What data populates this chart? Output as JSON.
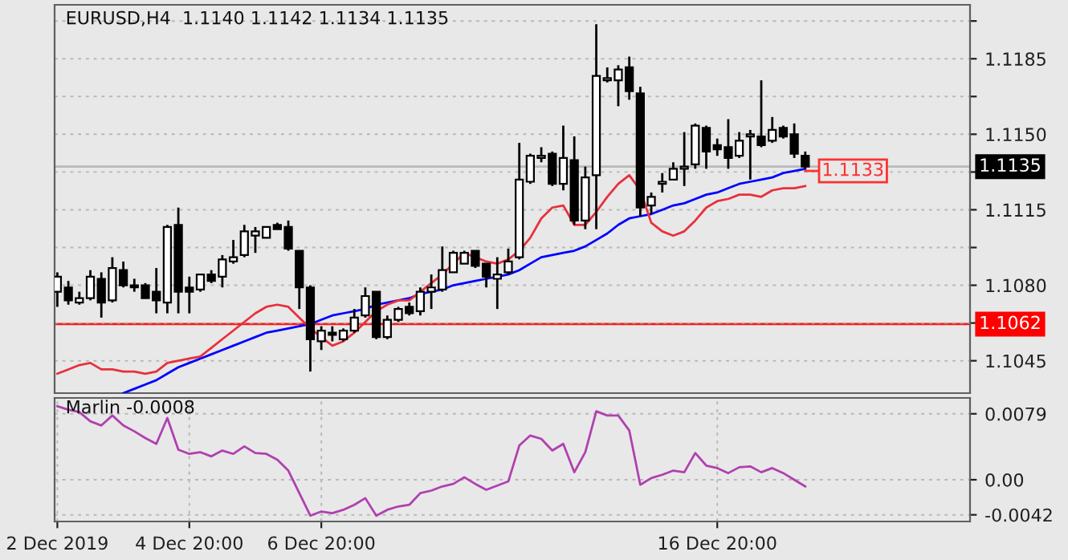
{
  "chart_data": [
    {
      "type": "candlestick",
      "title": "EURUSD,H4  1.1140 1.1142 1.1134 1.1135",
      "categories": [
        null,
        null,
        null,
        null,
        null,
        null,
        null,
        null,
        null,
        null,
        null,
        null,
        null,
        null,
        null,
        null,
        null,
        null,
        null,
        null,
        null,
        null,
        null,
        null,
        null,
        null,
        null,
        null,
        null,
        null,
        null,
        null,
        null,
        null,
        null,
        null,
        null,
        null,
        null,
        null,
        null,
        null,
        null,
        null,
        null,
        null,
        null,
        null,
        null,
        null,
        null,
        null,
        null,
        null,
        null,
        null,
        null,
        null,
        null,
        null,
        null,
        null,
        null,
        null,
        null,
        null,
        null,
        null,
        null
      ],
      "ohlc": [
        [
          1.1077,
          1.1086,
          1.107,
          1.1084
        ],
        [
          1.1079,
          1.1082,
          1.1071,
          1.1073
        ],
        [
          1.1072,
          1.1077,
          1.1071,
          1.1074
        ],
        [
          1.1074,
          1.1087,
          1.1073,
          1.1084
        ],
        [
          1.1083,
          1.1086,
          1.1065,
          1.1072
        ],
        [
          1.1073,
          1.1093,
          1.1072,
          1.1088
        ],
        [
          1.1087,
          1.1091,
          1.1079,
          1.108
        ],
        [
          1.108,
          1.1083,
          1.1077,
          1.1079
        ],
        [
          1.108,
          1.1081,
          1.1074,
          1.1074
        ],
        [
          1.1077,
          1.1088,
          1.1067,
          1.1073
        ],
        [
          1.1072,
          1.1108,
          1.1067,
          1.1107
        ],
        [
          1.1108,
          1.1116,
          1.1067,
          1.1077
        ],
        [
          1.1079,
          1.1084,
          1.1067,
          1.1077
        ],
        [
          1.1078,
          1.1085,
          1.1077,
          1.1085
        ],
        [
          1.1085,
          1.1087,
          1.1081,
          1.1082
        ],
        [
          1.1084,
          1.1094,
          1.1079,
          1.1092
        ],
        [
          1.1091,
          1.1101,
          1.109,
          1.1093
        ],
        [
          1.1094,
          1.1108,
          1.1093,
          1.1105
        ],
        [
          1.1103,
          1.1107,
          1.1095,
          1.1105
        ],
        [
          1.1102,
          1.1107,
          1.1102,
          1.1107
        ],
        [
          1.1108,
          1.1109,
          1.1106,
          1.1106
        ],
        [
          1.1107,
          1.111,
          1.1096,
          1.1097
        ],
        [
          1.1096,
          1.1096,
          1.1069,
          1.1079
        ],
        [
          1.1079,
          1.108,
          1.104,
          1.1055
        ],
        [
          1.1054,
          1.1061,
          1.105,
          1.1059
        ],
        [
          1.1058,
          1.1061,
          1.1054,
          1.1057
        ],
        [
          1.1055,
          1.106,
          1.1054,
          1.1059
        ],
        [
          1.1059,
          1.1069,
          1.1058,
          1.1065
        ],
        [
          1.1066,
          1.1079,
          1.1065,
          1.1075
        ],
        [
          1.1077,
          1.1077,
          1.1055,
          1.1056
        ],
        [
          1.1056,
          1.1066,
          1.1055,
          1.1064
        ],
        [
          1.1064,
          1.107,
          1.1063,
          1.1069
        ],
        [
          1.107,
          1.1072,
          1.1066,
          1.1067
        ],
        [
          1.1068,
          1.1079,
          1.1066,
          1.1077
        ],
        [
          1.1077,
          1.1085,
          1.1069,
          1.1079
        ],
        [
          1.1078,
          1.1098,
          1.1077,
          1.1087
        ],
        [
          1.1086,
          1.1096,
          1.1086,
          1.1095
        ],
        [
          1.109,
          1.1096,
          1.109,
          1.1095
        ],
        [
          1.1096,
          1.1096,
          1.1088,
          1.1089
        ],
        [
          1.109,
          1.109,
          1.1079,
          1.1084
        ],
        [
          1.1083,
          1.1093,
          1.1069,
          1.1085
        ],
        [
          1.1086,
          1.1097,
          1.1085,
          1.1091
        ],
        [
          1.1093,
          1.1146,
          1.1092,
          1.1129
        ],
        [
          1.1128,
          1.1141,
          1.1127,
          1.114
        ],
        [
          1.1139,
          1.1144,
          1.1137,
          1.114
        ],
        [
          1.1141,
          1.1142,
          1.1126,
          1.1127
        ],
        [
          1.1127,
          1.1154,
          1.1124,
          1.1139
        ],
        [
          1.1138,
          1.1149,
          1.1108,
          1.111
        ],
        [
          1.111,
          1.1135,
          1.1106,
          1.113
        ],
        [
          1.1131,
          1.1201,
          1.1106,
          1.1177
        ],
        [
          1.1175,
          1.1181,
          1.1174,
          1.1176
        ],
        [
          1.1175,
          1.1182,
          1.1163,
          1.118
        ],
        [
          1.1181,
          1.1186,
          1.1166,
          1.117
        ],
        [
          1.1169,
          1.1172,
          1.1112,
          1.1116
        ],
        [
          1.1117,
          1.1123,
          1.1113,
          1.1121
        ],
        [
          1.1127,
          1.1132,
          1.1123,
          1.1128
        ],
        [
          1.1129,
          1.1137,
          1.1129,
          1.1134
        ],
        [
          1.1134,
          1.1151,
          1.1126,
          1.1135
        ],
        [
          1.1136,
          1.1155,
          1.1134,
          1.1154
        ],
        [
          1.1153,
          1.1154,
          1.1134,
          1.1142
        ],
        [
          1.1145,
          1.1148,
          1.114,
          1.1143
        ],
        [
          1.1144,
          1.1157,
          1.1134,
          1.1139
        ],
        [
          1.114,
          1.1151,
          1.1139,
          1.1147
        ],
        [
          1.1149,
          1.1152,
          1.1129,
          1.115
        ],
        [
          1.1149,
          1.1175,
          1.1144,
          1.1145
        ],
        [
          1.1147,
          1.1158,
          1.1146,
          1.1152
        ],
        [
          1.1153,
          1.1154,
          1.1148,
          1.1149
        ],
        [
          1.115,
          1.1155,
          1.1139,
          1.1141
        ],
        [
          1.114,
          1.1142,
          1.1134,
          1.1135
        ]
      ],
      "series": [
        {
          "type": "line",
          "color": "#0000ff",
          "values": [
            null,
            null,
            null,
            null,
            null,
            null,
            1.103,
            1.1032,
            1.1034,
            1.1036,
            1.1039,
            1.1042,
            1.1044,
            1.1046,
            1.1048,
            1.105,
            1.1052,
            1.1054,
            1.1056,
            1.1058,
            1.1059,
            1.106,
            1.1061,
            1.1062,
            1.1064,
            1.1066,
            1.1067,
            1.1068,
            1.1069,
            1.1071,
            1.1072,
            1.1073,
            1.1074,
            1.1076,
            1.1077,
            1.1078,
            1.108,
            1.1081,
            1.1082,
            1.1083,
            1.1084,
            1.1085,
            1.1087,
            1.109,
            1.1093,
            1.1094,
            1.1095,
            1.1096,
            1.1098,
            1.1101,
            1.1104,
            1.1108,
            1.1111,
            1.1112,
            1.1113,
            1.1115,
            1.1117,
            1.1118,
            1.112,
            1.1122,
            1.1123,
            1.1125,
            1.1127,
            1.1128,
            1.1129,
            1.113,
            1.1132,
            1.1133,
            1.1134
          ]
        },
        {
          "type": "line",
          "color": "#e8303c",
          "values": [
            1.1039,
            1.1041,
            1.1043,
            1.1044,
            1.1041,
            1.1041,
            1.104,
            1.104,
            1.1039,
            1.104,
            1.1044,
            1.1045,
            1.1046,
            1.1047,
            1.1051,
            1.1055,
            1.1059,
            1.1063,
            1.1067,
            1.107,
            1.1071,
            1.107,
            1.1065,
            1.106,
            1.1056,
            1.1052,
            1.1054,
            1.1058,
            1.1063,
            1.1068,
            1.1071,
            1.1073,
            1.1073,
            1.1077,
            1.1081,
            1.1085,
            1.109,
            1.1095,
            1.1093,
            1.1091,
            1.109,
            1.1092,
            1.1096,
            1.1102,
            1.1111,
            1.1116,
            1.1117,
            1.1108,
            1.1108,
            1.1114,
            1.1121,
            1.1127,
            1.1131,
            1.1124,
            1.1109,
            1.1105,
            1.1103,
            1.1105,
            1.111,
            1.1116,
            1.1119,
            1.112,
            1.1122,
            1.1122,
            1.1121,
            1.1124,
            1.1125,
            1.1125,
            1.1126
          ]
        }
      ],
      "ref_lines": [
        {
          "axis": "y",
          "value": 1.1062,
          "label": "1.1062",
          "color": "#ff0000"
        },
        {
          "axis": "y",
          "value": 1.1135,
          "label": "1.1135",
          "color": "#000000"
        }
      ],
      "annotations": [
        {
          "text": "1.1133",
          "y": 1.1133
        }
      ],
      "ylim": [
        1.103,
        1.121
      ],
      "yticks": [
        {
          "value": 1.12025,
          "label": null
        },
        {
          "value": 1.1185,
          "label": "1.1185"
        },
        {
          "value": 1.11675,
          "label": null
        },
        {
          "value": 1.115,
          "label": "1.1150"
        },
        {
          "value": 1.11325,
          "label": null
        },
        {
          "value": 1.1115,
          "label": "1.1115"
        },
        {
          "value": 1.10975,
          "label": null
        },
        {
          "value": 1.108,
          "label": "1.1080"
        },
        {
          "value": 1.10625,
          "label": null
        },
        {
          "value": 1.1045,
          "label": "1.1045"
        }
      ],
      "tick_labels": "y",
      "grid": true
    },
    {
      "type": "line",
      "title": "Marlin -0.0008",
      "categories": [
        "2 Dec 2019",
        null,
        null,
        null,
        null,
        null,
        null,
        null,
        null,
        null,
        null,
        null,
        "4 Dec 20:00",
        null,
        null,
        null,
        null,
        null,
        null,
        null,
        null,
        null,
        null,
        null,
        "6 Dec 20:00",
        null,
        null,
        null,
        null,
        null,
        null,
        null,
        null,
        null,
        null,
        null,
        null,
        null,
        null,
        null,
        null,
        null,
        null,
        null,
        null,
        null,
        null,
        null,
        null,
        null,
        null,
        null,
        null,
        null,
        null,
        null,
        null,
        null,
        null,
        null,
        "16 Dec 20:00",
        null,
        null,
        null,
        null,
        null,
        null,
        null,
        null
      ],
      "series": [
        {
          "color": "#b040b0",
          "values": [
            0.0088,
            0.0084,
            0.0081,
            0.007,
            0.0065,
            0.0077,
            0.0065,
            0.0058,
            0.005,
            0.0043,
            0.0074,
            0.0036,
            0.0031,
            0.0033,
            0.0028,
            0.0035,
            0.0031,
            0.004,
            0.0032,
            0.0031,
            0.0024,
            0.0011,
            -0.0016,
            -0.0043,
            -0.0038,
            -0.004,
            -0.0036,
            -0.003,
            -0.0022,
            -0.0043,
            -0.0036,
            -0.0032,
            -0.003,
            -0.0016,
            -0.0013,
            -0.0008,
            -0.0005,
            0.0003,
            -0.0005,
            -0.0012,
            -0.0007,
            -0.0002,
            0.0041,
            0.0053,
            0.0049,
            0.0035,
            0.0043,
            0.0009,
            0.0033,
            0.0082,
            0.0077,
            0.0077,
            0.0059,
            -0.0006,
            0.0002,
            0.0006,
            0.0011,
            0.0009,
            0.0032,
            0.0017,
            0.0014,
            0.0008,
            0.0015,
            0.0016,
            0.0009,
            0.0014,
            0.0008,
            0.0,
            -0.0008
          ]
        }
      ],
      "ylim": [
        -0.005,
        0.0098
      ],
      "yticks": [
        {
          "value": 0.0079,
          "label": "0.0079"
        },
        {
          "value": 0,
          "label": "0.00"
        },
        {
          "value": -0.0042,
          "label": "-0.0042"
        }
      ],
      "grid": true
    }
  ]
}
